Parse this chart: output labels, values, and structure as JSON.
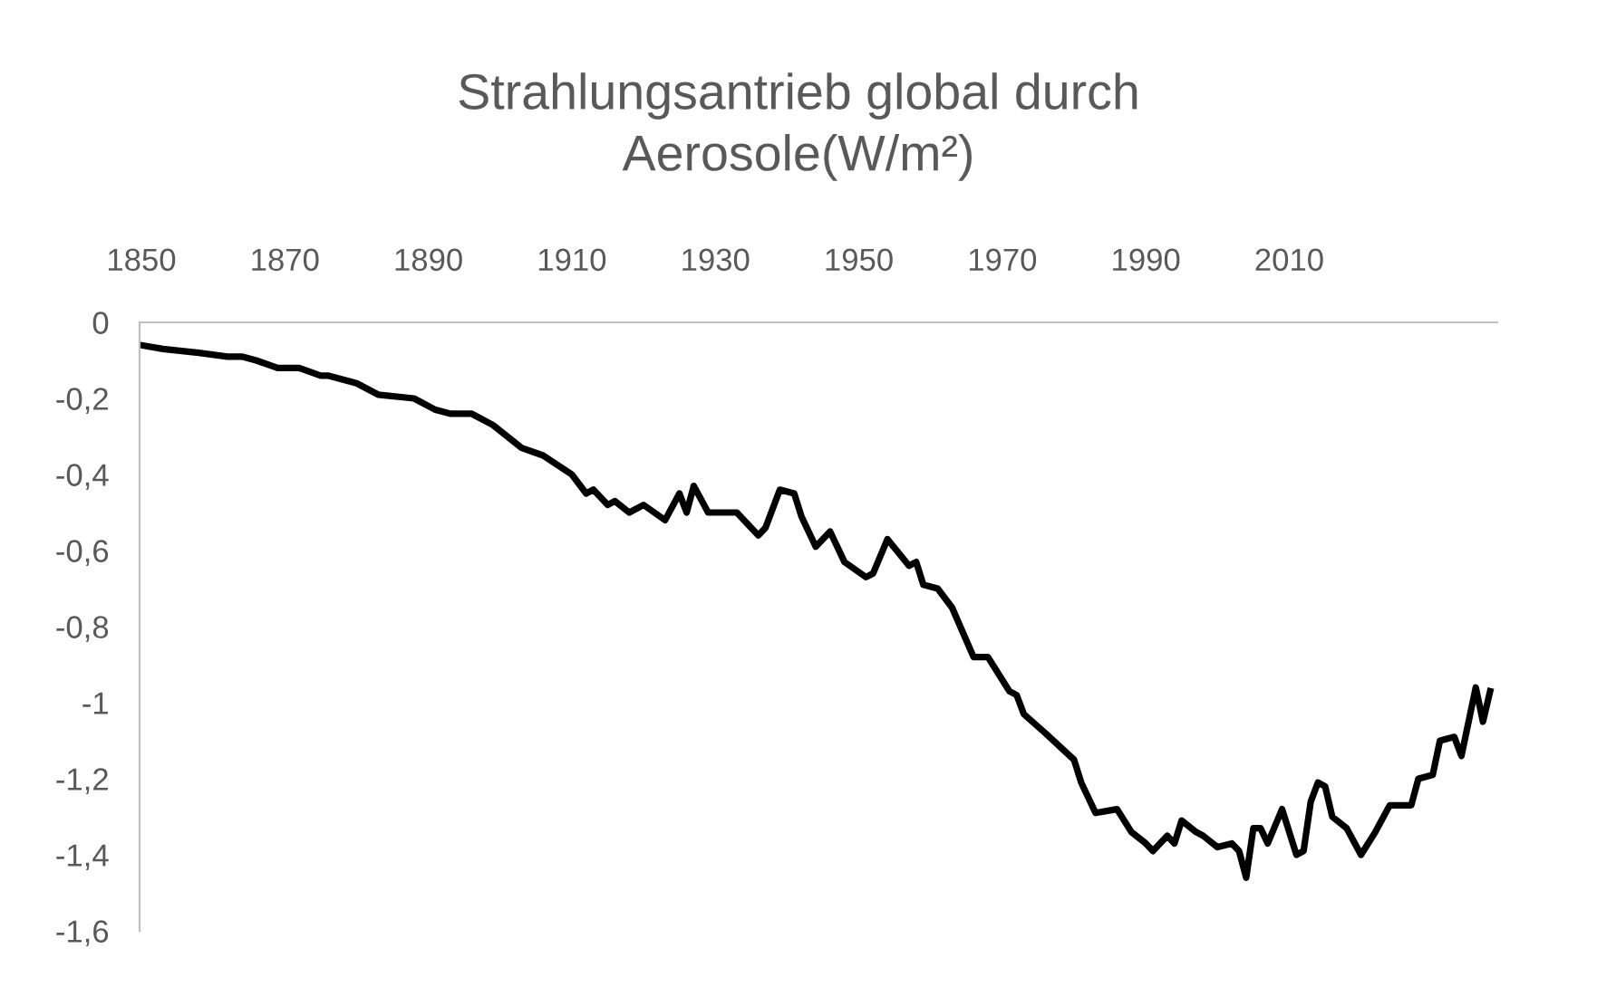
{
  "chart_data": {
    "type": "line",
    "title": "Strahlungsantrieb global durch\nAerosole(W/m²)",
    "x": [
      1850,
      1853,
      1858,
      1862,
      1864,
      1866,
      1869,
      1872,
      1875,
      1876,
      1880,
      1883,
      1888,
      1891,
      1893,
      1896,
      1899,
      1903,
      1906,
      1910,
      1912,
      1913,
      1915,
      1916,
      1918,
      1920,
      1923,
      1925,
      1926,
      1927,
      1929,
      1933,
      1934,
      1936,
      1937,
      1939,
      1941,
      1942,
      1944,
      1946,
      1948,
      1951,
      1952,
      1954,
      1957,
      1958,
      1959,
      1961,
      1963,
      1966,
      1968,
      1971,
      1972,
      1973,
      1976,
      1980,
      1981,
      1983,
      1986,
      1988,
      1990,
      1991,
      1993,
      1994,
      1995,
      1997,
      1998,
      2000,
      2002,
      2003,
      2004,
      2005,
      2006,
      2007,
      2009,
      2011,
      2012,
      2013,
      2014,
      2015,
      2016,
      2018,
      2020,
      2022,
      2024,
      2025,
      2027,
      2028,
      2030,
      2031,
      2033,
      2034,
      2036,
      2037,
      2038
    ],
    "series": [
      {
        "color": "#000000",
        "values": [
          -0.06,
          -0.07,
          -0.08,
          -0.09,
          -0.09,
          -0.1,
          -0.12,
          -0.12,
          -0.14,
          -0.14,
          -0.16,
          -0.19,
          -0.2,
          -0.23,
          -0.24,
          -0.24,
          -0.27,
          -0.33,
          -0.35,
          -0.4,
          -0.45,
          -0.44,
          -0.48,
          -0.47,
          -0.5,
          -0.48,
          -0.52,
          -0.45,
          -0.5,
          -0.43,
          -0.5,
          -0.5,
          -0.52,
          -0.56,
          -0.54,
          -0.44,
          -0.45,
          -0.51,
          -0.59,
          -0.55,
          -0.63,
          -0.67,
          -0.66,
          -0.57,
          -0.64,
          -0.63,
          -0.69,
          -0.7,
          -0.75,
          -0.88,
          -0.88,
          -0.97,
          -0.98,
          -1.03,
          -1.08,
          -1.15,
          -1.21,
          -1.29,
          -1.28,
          -1.34,
          -1.37,
          -1.39,
          -1.35,
          -1.37,
          -1.31,
          -1.34,
          -1.35,
          -1.38,
          -1.37,
          -1.39,
          -1.46,
          -1.33,
          -1.33,
          -1.37,
          -1.28,
          -1.4,
          -1.39,
          -1.26,
          -1.21,
          -1.22,
          -1.3,
          -1.33,
          -1.4,
          -1.34,
          -1.27,
          -1.27,
          -1.27,
          -1.2,
          -1.19,
          -1.1,
          -1.09,
          -1.14,
          -0.96,
          -1.05,
          -0.97
        ]
      }
    ],
    "xlim": [
      1849.75,
      2039
    ],
    "xticks": [
      1850,
      1870,
      1890,
      1910,
      1930,
      1950,
      1970,
      1990,
      2010
    ],
    "ylim": [
      -1.6,
      0
    ],
    "yticks": [
      {
        "value": 0,
        "label": "0"
      },
      {
        "value": -0.2,
        "label": "-0,2"
      },
      {
        "value": -0.4,
        "label": "-0,4"
      },
      {
        "value": -0.6,
        "label": "-0,6"
      },
      {
        "value": -0.8,
        "label": "-0,8"
      },
      {
        "value": -1,
        "label": "-1"
      },
      {
        "value": -1.2,
        "label": "-1,2"
      },
      {
        "value": -1.4,
        "label": "-1,4"
      },
      {
        "value": -1.6,
        "label": "-1,6"
      }
    ],
    "grid": false,
    "legend": false,
    "marker": "none",
    "line_style": "solid"
  }
}
